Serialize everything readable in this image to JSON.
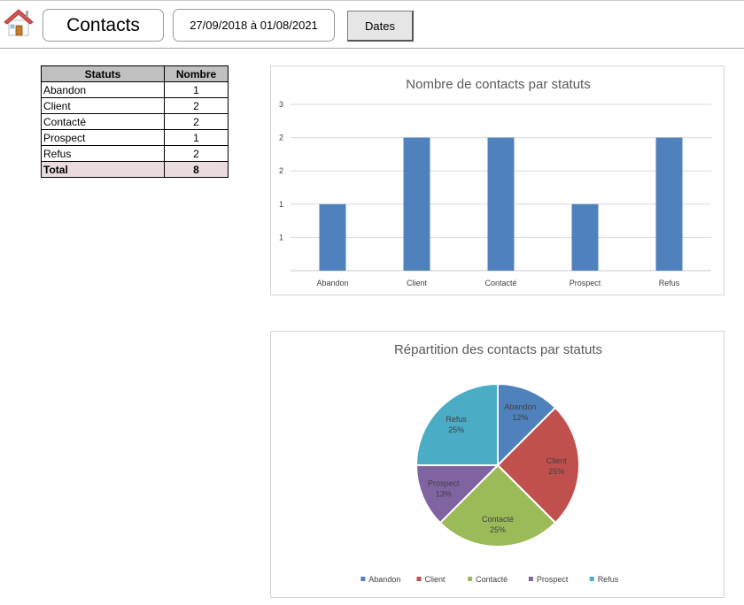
{
  "header": {
    "title": "Contacts",
    "date_range": "27/09/2018 à 01/08/2021",
    "dates_button": "Dates"
  },
  "table": {
    "headers": [
      "Statuts",
      "Nombre"
    ],
    "rows": [
      {
        "status": "Abandon",
        "count": "1"
      },
      {
        "status": "Client",
        "count": "2"
      },
      {
        "status": "Contacté",
        "count": "2"
      },
      {
        "status": "Prospect",
        "count": "1"
      },
      {
        "status": "Refus",
        "count": "2"
      }
    ],
    "total_label": "Total",
    "total_value": "8"
  },
  "colors": {
    "bar": "#4f81bd",
    "pie": [
      "#4f81bd",
      "#c0504d",
      "#9bbb59",
      "#8064a2",
      "#4bacc6"
    ]
  },
  "chart_data": [
    {
      "type": "bar",
      "title": "Nombre de contacts par statuts",
      "categories": [
        "Abandon",
        "Client",
        "Contacté",
        "Prospect",
        "Refus"
      ],
      "values": [
        1,
        2,
        2,
        1,
        2
      ],
      "y_tick_labels": [
        "1",
        "1",
        "2",
        "2",
        "3"
      ],
      "ylim": [
        0,
        2.5
      ],
      "xlabel": "",
      "ylabel": "",
      "grid": true,
      "legend": "none"
    },
    {
      "type": "pie",
      "title": "Répartition des contacts par statuts",
      "categories": [
        "Abandon",
        "Client",
        "Contacté",
        "Prospect",
        "Refus"
      ],
      "values": [
        1,
        2,
        2,
        1,
        2
      ],
      "percent_labels": [
        "12%",
        "25%",
        "25%",
        "13%",
        "25%"
      ],
      "legend": "bottom"
    }
  ]
}
